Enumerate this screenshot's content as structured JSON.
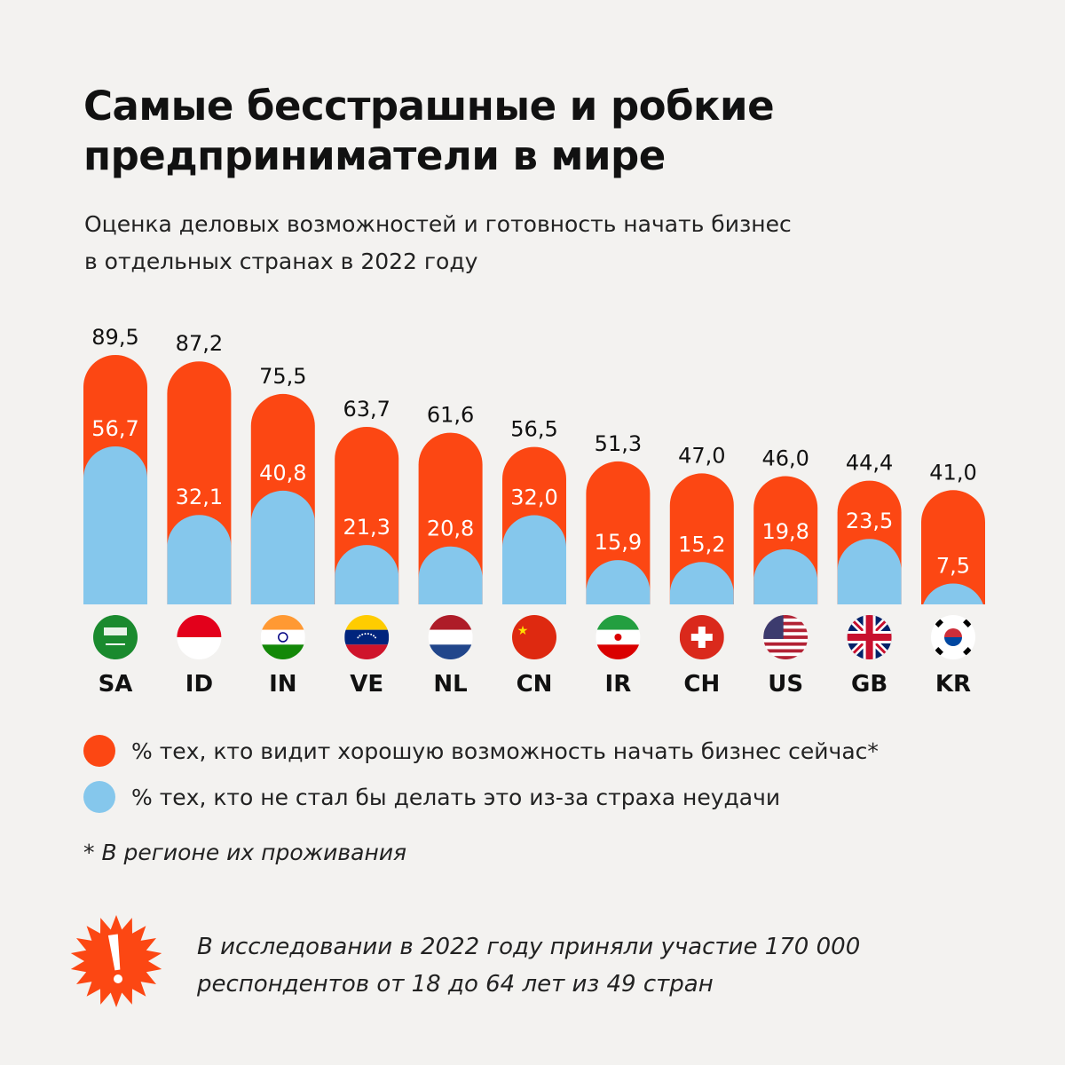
{
  "title_line1": "Самые бесстрашные и робкие",
  "title_line2": "предприниматели в мире",
  "subtitle_line1": "Оценка деловых возможностей и готовность начать бизнес",
  "subtitle_line2": "в отдельных странах в 2022 году",
  "colors": {
    "opportunity": "#fc4713",
    "fear": "#85c7ec",
    "background": "#f3f2f0"
  },
  "chart_data": {
    "type": "bar",
    "categories": [
      "SA",
      "ID",
      "IN",
      "VE",
      "NL",
      "CN",
      "IR",
      "CH",
      "US",
      "GB",
      "KR"
    ],
    "series": [
      {
        "name": "% тех, кто видит хорошую возможность начать бизнес сейчас*",
        "values": [
          89.5,
          87.2,
          75.5,
          63.7,
          61.6,
          56.5,
          51.3,
          47.0,
          46.0,
          44.4,
          41.0
        ],
        "labels": [
          "89,5",
          "87,2",
          "75,5",
          "63,7",
          "61,6",
          "56,5",
          "51,3",
          "47,0",
          "46,0",
          "44,4",
          "41,0"
        ]
      },
      {
        "name": "% тех, кто не стал бы делать это из-за страха неудачи",
        "values": [
          56.7,
          32.1,
          40.8,
          21.3,
          20.8,
          32.0,
          15.9,
          15.2,
          19.8,
          23.5,
          7.5
        ],
        "labels": [
          "56,7",
          "32,1",
          "40,8",
          "21,3",
          "20,8",
          "32,0",
          "15,9",
          "15,2",
          "19,8",
          "23,5",
          "7,5"
        ]
      }
    ],
    "flags": [
      "saudi-arabia-flag",
      "indonesia-flag",
      "india-flag",
      "venezuela-flag",
      "netherlands-flag",
      "china-flag",
      "iran-flag",
      "switzerland-flag",
      "usa-flag",
      "uk-flag",
      "south-korea-flag"
    ],
    "ylim": [
      0,
      100
    ],
    "overlapping": true
  },
  "legend": {
    "opportunity": "% тех, кто видит хорошую возможность начать бизнес сейчас*",
    "fear": "% тех, кто не стал бы делать это из-за страха неудачи"
  },
  "footnote": "* В регионе их проживания",
  "note_icon": "exclamation-burst-icon",
  "note_line1": "В исследовании в 2022 году приняли участие 170 000",
  "note_line2": "респондентов от 18 до 64 лет из 49 стран"
}
